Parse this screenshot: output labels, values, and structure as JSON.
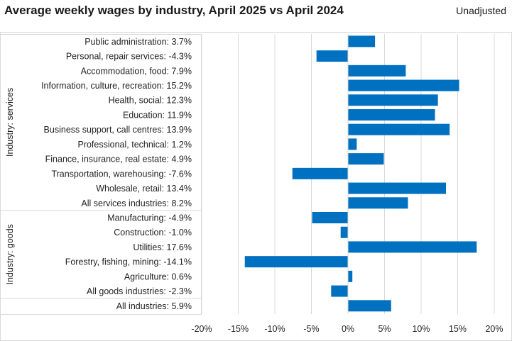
{
  "title": "Average weekly wages by industry, April 2025 vs April 2024",
  "note": "Unadjusted",
  "colors": {
    "bar": "#0070c0",
    "grid": "#d9d9d9"
  },
  "chart_data": {
    "type": "bar",
    "orientation": "horizontal",
    "title": "Average weekly wages by industry, April 2025 vs April 2024",
    "groups": [
      {
        "label": "Industry: services",
        "categories": [
          "Public administration: 3.7%",
          "Personal, repair services: -4.3%",
          "Accommodation, food: 7.9%",
          "Information, culture, recreation: 15.2%",
          "Health, social: 12.3%",
          "Education: 11.9%",
          "Business support, call centres: 13.9%",
          "Professional, technical: 1.2%",
          "Finance, insurance, real estate: 4.9%",
          "Transportation, warehousing: -7.6%",
          "Wholesale, retail: 13.4%",
          "All services industries: 8.2%"
        ],
        "values": [
          3.7,
          -4.3,
          7.9,
          15.2,
          12.3,
          11.9,
          13.9,
          1.2,
          4.9,
          -7.6,
          13.4,
          8.2
        ]
      },
      {
        "label": "Industry: goods",
        "categories": [
          "Manufacturing: -4.9%",
          "Construction: -1.0%",
          "Utilities: 17.6%",
          "Forestry, fishing, mining: -14.1%",
          "Agriculture: 0.6%",
          "All goods industries: -2.3%"
        ],
        "values": [
          -4.9,
          -1.0,
          17.6,
          -14.1,
          0.6,
          -2.3
        ]
      },
      {
        "label": "",
        "categories": [
          "All industries: 5.9%"
        ],
        "values": [
          5.9
        ]
      }
    ],
    "xlim": [
      -20,
      20
    ],
    "xticks": [
      -20,
      -15,
      -10,
      -5,
      0,
      5,
      10,
      15,
      20
    ],
    "xtick_labels": [
      "-20%",
      "-15%",
      "-10%",
      "-5%",
      "0%",
      "5%",
      "10%",
      "15%",
      "20%"
    ],
    "xlabel": "",
    "ylabel": "",
    "grid": true
  }
}
